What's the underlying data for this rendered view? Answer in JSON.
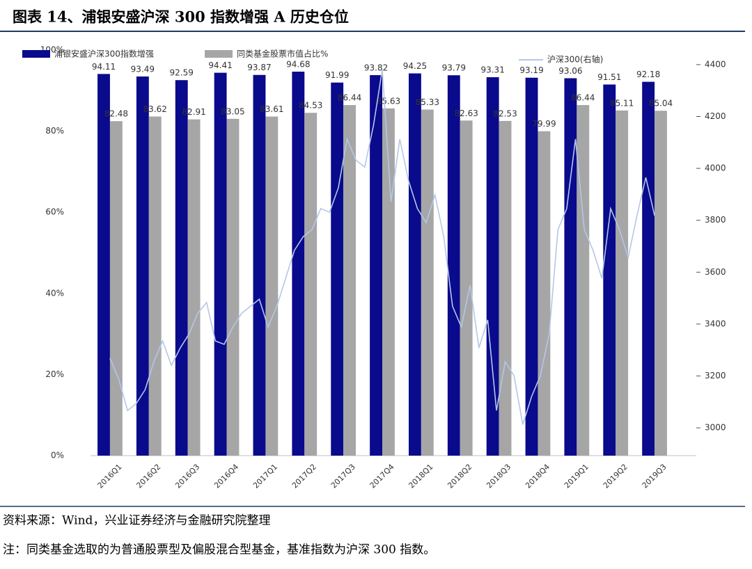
{
  "chart_data": [
    {
      "type": "bar",
      "title": "图表 14、浦银安盛沪深 300 指数增强 A 历史仓位",
      "source": "资料来源：Wind，兴业证券经济与金融研究院整理",
      "note": "注：同类基金选取的为普通股票型及偏股混合型基金，基准指数为沪深 300 指数。",
      "categories": [
        "2016Q1",
        "2016Q2",
        "2016Q3",
        "2016Q4",
        "2017Q1",
        "2017Q2",
        "2017Q3",
        "2017Q4",
        "2018Q1",
        "2018Q2",
        "2018Q3",
        "2018Q4",
        "2019Q1",
        "2019Q2",
        "2019Q3"
      ],
      "series": [
        {
          "name": "浦银安盛沪深300指数增强",
          "color": "#0a0a8c",
          "values": [
            94.11,
            93.49,
            92.59,
            94.41,
            93.87,
            94.68,
            91.99,
            93.82,
            94.25,
            93.79,
            93.31,
            93.19,
            93.06,
            91.51,
            92.18
          ]
        },
        {
          "name": "同类基金股票市值占比%",
          "color": "#a6a6a6",
          "values": [
            82.48,
            83.62,
            82.91,
            83.05,
            83.61,
            84.53,
            86.44,
            85.63,
            85.33,
            82.63,
            82.53,
            79.99,
            86.44,
            85.11,
            85.04
          ]
        }
      ],
      "ylim": [
        0,
        100
      ],
      "yticks": [
        {
          "value": 0,
          "label": "0%"
        },
        {
          "value": 20,
          "label": "20%"
        },
        {
          "value": 40,
          "label": "40%"
        },
        {
          "value": 60,
          "label": "60%"
        },
        {
          "value": 80,
          "label": "80%"
        },
        {
          "value": 100,
          "label": "100%"
        }
      ]
    },
    {
      "type": "line",
      "series": [
        {
          "name": "沪深300(右轴)",
          "color": "#b4c7e7",
          "axis": "y2",
          "values": [
            3268,
            3188,
            3067,
            3094,
            3147,
            3255,
            3335,
            3241,
            3308,
            3362,
            3442,
            3483,
            3335,
            3322,
            3389,
            3442,
            3469,
            3496,
            3389,
            3469,
            3576,
            3684,
            3737,
            3764,
            3845,
            3831,
            3925,
            4113,
            4032,
            4005,
            4166,
            4381,
            3871,
            4113,
            3952,
            3845,
            3791,
            3898,
            3737,
            3469,
            3389,
            3550,
            3308,
            3416,
            3067,
            3255,
            3201,
            3013,
            3121,
            3201,
            3362,
            3764,
            3845,
            4113,
            3764,
            3684,
            3576,
            3845,
            3764,
            3657,
            3818,
            3965,
            3818
          ]
        }
      ],
      "y2lim": [
        2893,
        4456
      ],
      "y2ticks": [
        3000,
        3200,
        3400,
        3600,
        3800,
        4000,
        4200,
        4400
      ]
    }
  ]
}
